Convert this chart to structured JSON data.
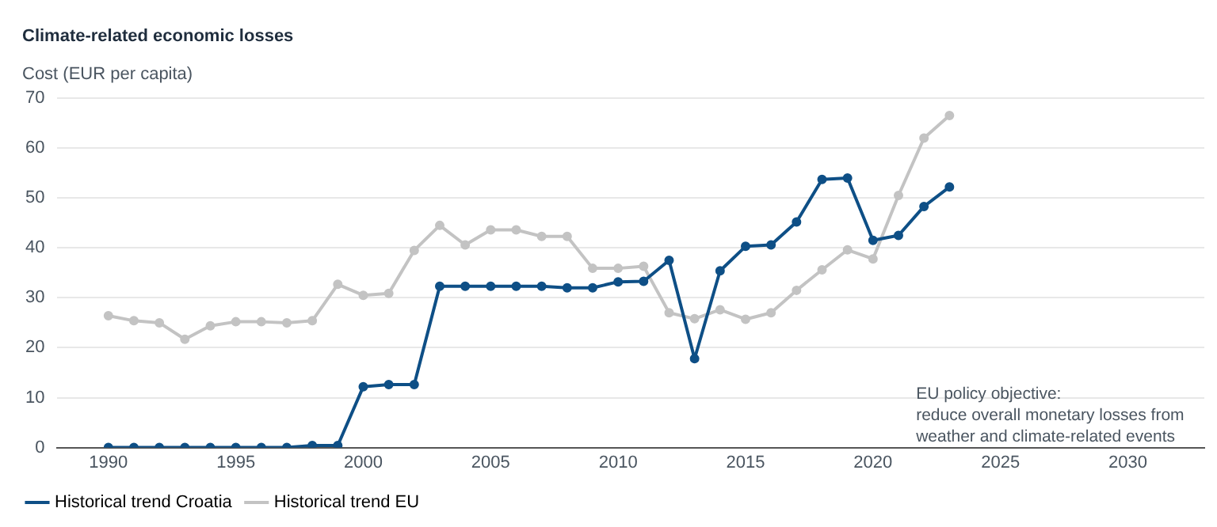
{
  "chart_data": {
    "type": "line",
    "title": "Climate-related economic losses",
    "ylabel": "Cost (EUR per capita)",
    "x": [
      1990,
      1991,
      1992,
      1993,
      1994,
      1995,
      1996,
      1997,
      1998,
      1999,
      2000,
      2001,
      2002,
      2003,
      2004,
      2005,
      2006,
      2007,
      2008,
      2009,
      2010,
      2011,
      2012,
      2013,
      2014,
      2015,
      2016,
      2017,
      2018,
      2019,
      2020,
      2021,
      2022,
      2023
    ],
    "series": [
      {
        "name": "Historical trend Croatia",
        "color": "#0e4f86",
        "values": [
          0,
          0,
          0,
          0,
          0,
          0,
          0,
          0,
          0.4,
          0.4,
          12.2,
          12.6,
          12.6,
          32.3,
          32.3,
          32.3,
          32.3,
          32.3,
          32,
          32,
          33.2,
          33.3,
          37.5,
          17.8,
          35.4,
          40.3,
          40.6,
          45.2,
          53.7,
          54,
          41.5,
          42.5,
          48.3,
          52.2
        ]
      },
      {
        "name": "Historical trend EU",
        "color": "#c3c3c3",
        "values": [
          26.4,
          25.4,
          25,
          21.7,
          24.4,
          25.2,
          25.2,
          25,
          25.4,
          32.7,
          30.5,
          30.9,
          39.5,
          44.5,
          40.6,
          43.6,
          43.6,
          42.3,
          42.3,
          35.9,
          35.9,
          36.3,
          27,
          25.8,
          27.6,
          25.7,
          27,
          31.5,
          35.6,
          39.6,
          37.8,
          50.5,
          62,
          66.5
        ]
      }
    ],
    "xlim": [
      1988,
      2033
    ],
    "xticks": [
      1990,
      1995,
      2000,
      2005,
      2010,
      2015,
      2020,
      2025,
      2030
    ],
    "ylim": [
      0,
      70
    ],
    "yticks": [
      0,
      10,
      20,
      30,
      40,
      50,
      60,
      70
    ],
    "grid": "y",
    "legend": "bottom left",
    "marker": "circle",
    "line_style": "solid",
    "annotations": [
      "EU policy objective:\nreduce overall monetary losses from\nweather and climate-related events"
    ]
  }
}
